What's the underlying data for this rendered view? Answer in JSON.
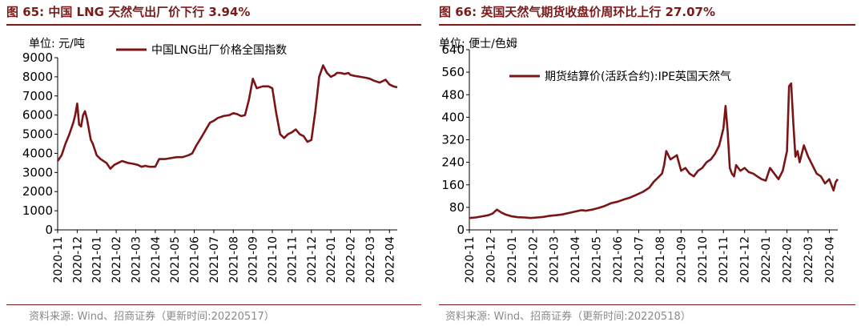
{
  "colors": {
    "series": "#7b1416",
    "title": "#7a1a1a",
    "source": "#8a8a8a"
  },
  "left": {
    "title": "图 65:  中国 LNG 天然气出厂价下行 3.94%",
    "unit": "单位:  元/吨",
    "source": "资料来源:  Wind、招商证券（更新时间:20220517）"
  },
  "right": {
    "title": "图 66:  英国天然气期货收盘价周环比上行 27.07%",
    "unit": "单位:  便士/色姆",
    "source": "资料来源:  Wind、招商证券（更新时间:20220518）"
  },
  "chart_data": [
    {
      "type": "line",
      "title": "中国 LNG 天然气出厂价下行 3.94%",
      "ylabel": "元/吨",
      "ylim": [
        0,
        9000
      ],
      "yticks": [
        0,
        1000,
        2000,
        3000,
        4000,
        5000,
        6000,
        7000,
        8000,
        9000
      ],
      "categories": [
        "2020-11",
        "2020-12",
        "2021-01",
        "2021-02",
        "2021-03",
        "2021-04",
        "2021-05",
        "2021-06",
        "2021-07",
        "2021-08",
        "2021-09",
        "2021-10",
        "2021-11",
        "2021-12",
        "2022-01",
        "2022-02",
        "2022-03",
        "2022-04"
      ],
      "legend": "top-center",
      "series": [
        {
          "name": "中国LNG出厂价格全国指数",
          "x": [
            0,
            0.2,
            0.4,
            0.6,
            0.8,
            0.9,
            1.0,
            1.1,
            1.2,
            1.3,
            1.4,
            1.5,
            1.7,
            1.8,
            2.0,
            2.2,
            2.5,
            2.7,
            2.9,
            3.1,
            3.3,
            3.6,
            3.9,
            4.1,
            4.3,
            4.5,
            4.7,
            5.0,
            5.2,
            5.5,
            5.8,
            6.1,
            6.4,
            6.7,
            6.9,
            7.1,
            7.4,
            7.8,
            8.0,
            8.2,
            8.5,
            8.8,
            9.0,
            9.2,
            9.4,
            9.6,
            9.8,
            10.0,
            10.2,
            10.5,
            10.8,
            11.0,
            11.2,
            11.4,
            11.6,
            11.8,
            12.0,
            12.2,
            12.4,
            12.6,
            12.8,
            13.0,
            13.2,
            13.4,
            13.6,
            13.8,
            14.0,
            14.2,
            14.3,
            14.5,
            14.7,
            14.9,
            15.0,
            15.2,
            15.5,
            15.8,
            16.0,
            16.2,
            16.5,
            16.8,
            17.0,
            17.2,
            17.4
          ],
          "values": [
            3600,
            3900,
            4500,
            5000,
            5600,
            6000,
            6600,
            5500,
            5400,
            6000,
            6200,
            5800,
            4700,
            4500,
            3900,
            3700,
            3500,
            3200,
            3400,
            3500,
            3600,
            3500,
            3450,
            3400,
            3300,
            3350,
            3300,
            3300,
            3700,
            3700,
            3750,
            3800,
            3800,
            3900,
            4000,
            4400,
            4900,
            5600,
            5700,
            5850,
            5950,
            6000,
            6100,
            6050,
            5950,
            6000,
            6800,
            7900,
            7400,
            7500,
            7500,
            7400,
            6100,
            5000,
            4800,
            5000,
            5100,
            5250,
            5000,
            4900,
            4600,
            4700,
            6200,
            8000,
            8600,
            8200,
            8000,
            8100,
            8200,
            8200,
            8150,
            8200,
            8100,
            8050,
            8000,
            7950,
            7900,
            7800,
            7700,
            7850,
            7600,
            7500,
            7450
          ]
        }
      ]
    },
    {
      "type": "line",
      "title": "英国天然气期货收盘价周环比上行 27.07%",
      "ylabel": "便士/色姆",
      "ylim": [
        0,
        640
      ],
      "yticks": [
        0,
        80,
        160,
        240,
        320,
        400,
        480,
        560,
        640
      ],
      "categories": [
        "2020-11",
        "2020-12",
        "2021-01",
        "2021-02",
        "2021-03",
        "2021-04",
        "2021-05",
        "2021-06",
        "2021-07",
        "2021-08",
        "2021-09",
        "2021-10",
        "2021-11",
        "2021-12",
        "2022-01",
        "2022-02",
        "2022-03",
        "2022-04"
      ],
      "legend": "top-center",
      "series": [
        {
          "name": "期货结算价(活跃合约):IPE英国天然气",
          "x": [
            0,
            0.3,
            0.6,
            0.9,
            1.1,
            1.3,
            1.5,
            1.7,
            2.0,
            2.3,
            2.6,
            2.9,
            3.2,
            3.5,
            3.8,
            4.1,
            4.4,
            4.7,
            5.0,
            5.3,
            5.5,
            5.8,
            6.1,
            6.4,
            6.7,
            7.0,
            7.3,
            7.6,
            7.9,
            8.2,
            8.5,
            8.7,
            8.9,
            9.1,
            9.2,
            9.3,
            9.5,
            9.7,
            9.8,
            10.0,
            10.2,
            10.4,
            10.6,
            10.8,
            11.0,
            11.2,
            11.4,
            11.6,
            11.8,
            12.0,
            12.1,
            12.2,
            12.3,
            12.4,
            12.5,
            12.6,
            12.8,
            13.0,
            13.2,
            13.4,
            13.6,
            13.8,
            14.0,
            14.2,
            14.4,
            14.6,
            14.8,
            15.0,
            15.1,
            15.2,
            15.3,
            15.4,
            15.5,
            15.6,
            15.8,
            16.0,
            16.2,
            16.4,
            16.6,
            16.8,
            17.0,
            17.1,
            17.2,
            17.3,
            17.4
          ],
          "values": [
            42,
            44,
            48,
            52,
            58,
            72,
            62,
            55,
            48,
            45,
            44,
            42,
            44,
            46,
            50,
            52,
            55,
            60,
            65,
            70,
            68,
            72,
            78,
            85,
            95,
            100,
            108,
            115,
            125,
            135,
            150,
            170,
            185,
            200,
            230,
            280,
            250,
            260,
            265,
            210,
            220,
            200,
            190,
            210,
            220,
            240,
            250,
            270,
            300,
            360,
            440,
            350,
            220,
            200,
            190,
            230,
            210,
            220,
            205,
            200,
            190,
            180,
            175,
            220,
            200,
            180,
            210,
            280,
            510,
            520,
            380,
            260,
            280,
            240,
            300,
            260,
            230,
            200,
            190,
            165,
            180,
            160,
            140,
            170,
            180
          ]
        }
      ]
    }
  ]
}
